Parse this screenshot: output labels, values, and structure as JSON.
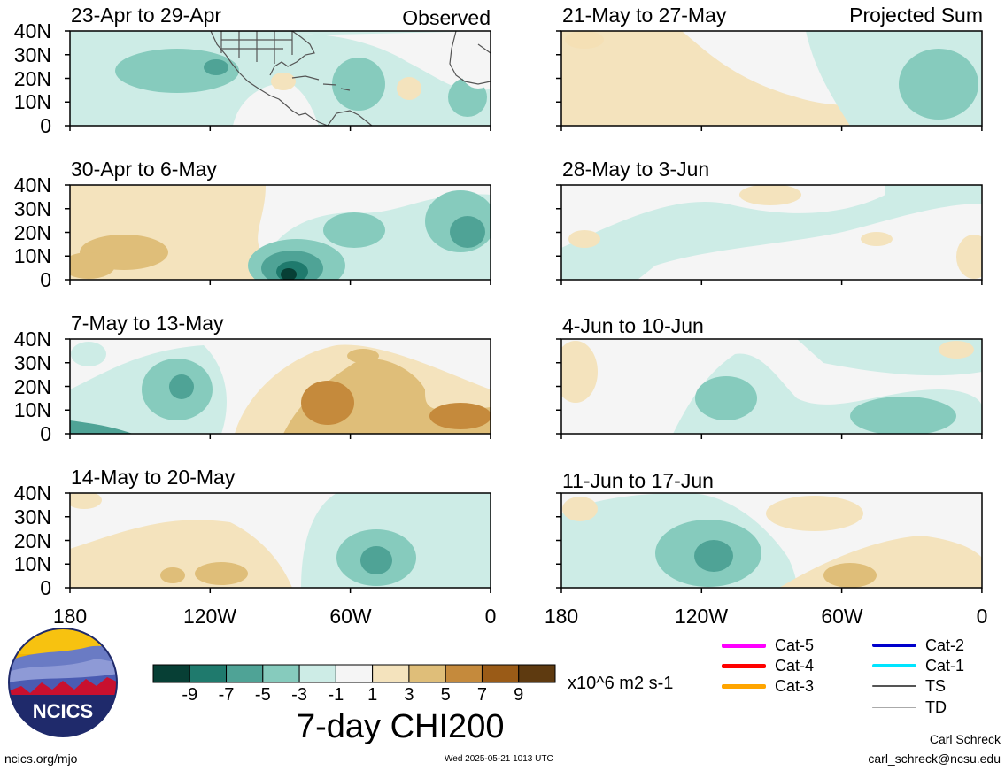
{
  "panels": [
    {
      "period": "23-Apr to 29-Apr",
      "tag": "Observed"
    },
    {
      "period": "30-Apr to 6-May",
      "tag": ""
    },
    {
      "period": "7-May to 13-May",
      "tag": ""
    },
    {
      "period": "14-May to 20-May",
      "tag": ""
    },
    {
      "period": "21-May to 27-May",
      "tag": "Projected Sum"
    },
    {
      "period": "28-May to 3-Jun",
      "tag": ""
    },
    {
      "period": "4-Jun to 10-Jun",
      "tag": ""
    },
    {
      "period": "11-Jun to 17-Jun",
      "tag": ""
    }
  ],
  "y_ticks": [
    "40N",
    "30N",
    "20N",
    "10N",
    "0"
  ],
  "x_ticks": [
    "180",
    "120W",
    "60W",
    "0"
  ],
  "colorbar": {
    "ticks": [
      "-9",
      "-7",
      "-5",
      "-3",
      "-1",
      "1",
      "3",
      "5",
      "7",
      "9"
    ],
    "colors": [
      "#073f35",
      "#1f7a6d",
      "#4fa396",
      "#86cbbd",
      "#cdece6",
      "#f5f5f5",
      "#f4e3bd",
      "#dfbe79",
      "#c58a3c",
      "#9a5b17",
      "#5e3a10"
    ],
    "units": "x10^6 m2 s-1",
    "title": "7-day CHI200"
  },
  "storm_legend": [
    {
      "label": "Cat-5",
      "color": "#ff00ff"
    },
    {
      "label": "Cat-4",
      "color": "#ff0000"
    },
    {
      "label": "Cat-3",
      "color": "#ffa500"
    },
    {
      "label": "Cat-2",
      "color": "#0000cc"
    },
    {
      "label": "Cat-1",
      "color": "#00e5ff"
    },
    {
      "label": "TS",
      "color": "#555555"
    },
    {
      "label": "TD",
      "color": "#aaaaaa"
    }
  ],
  "logo": {
    "text": "NCICS"
  },
  "footer": {
    "url": "ncics.org/mjo",
    "timestamp": "Wed 2025-05-21 1013 UTC",
    "author": "Carl Schreck",
    "email": "carl_schreck@ncsu.edu"
  }
}
